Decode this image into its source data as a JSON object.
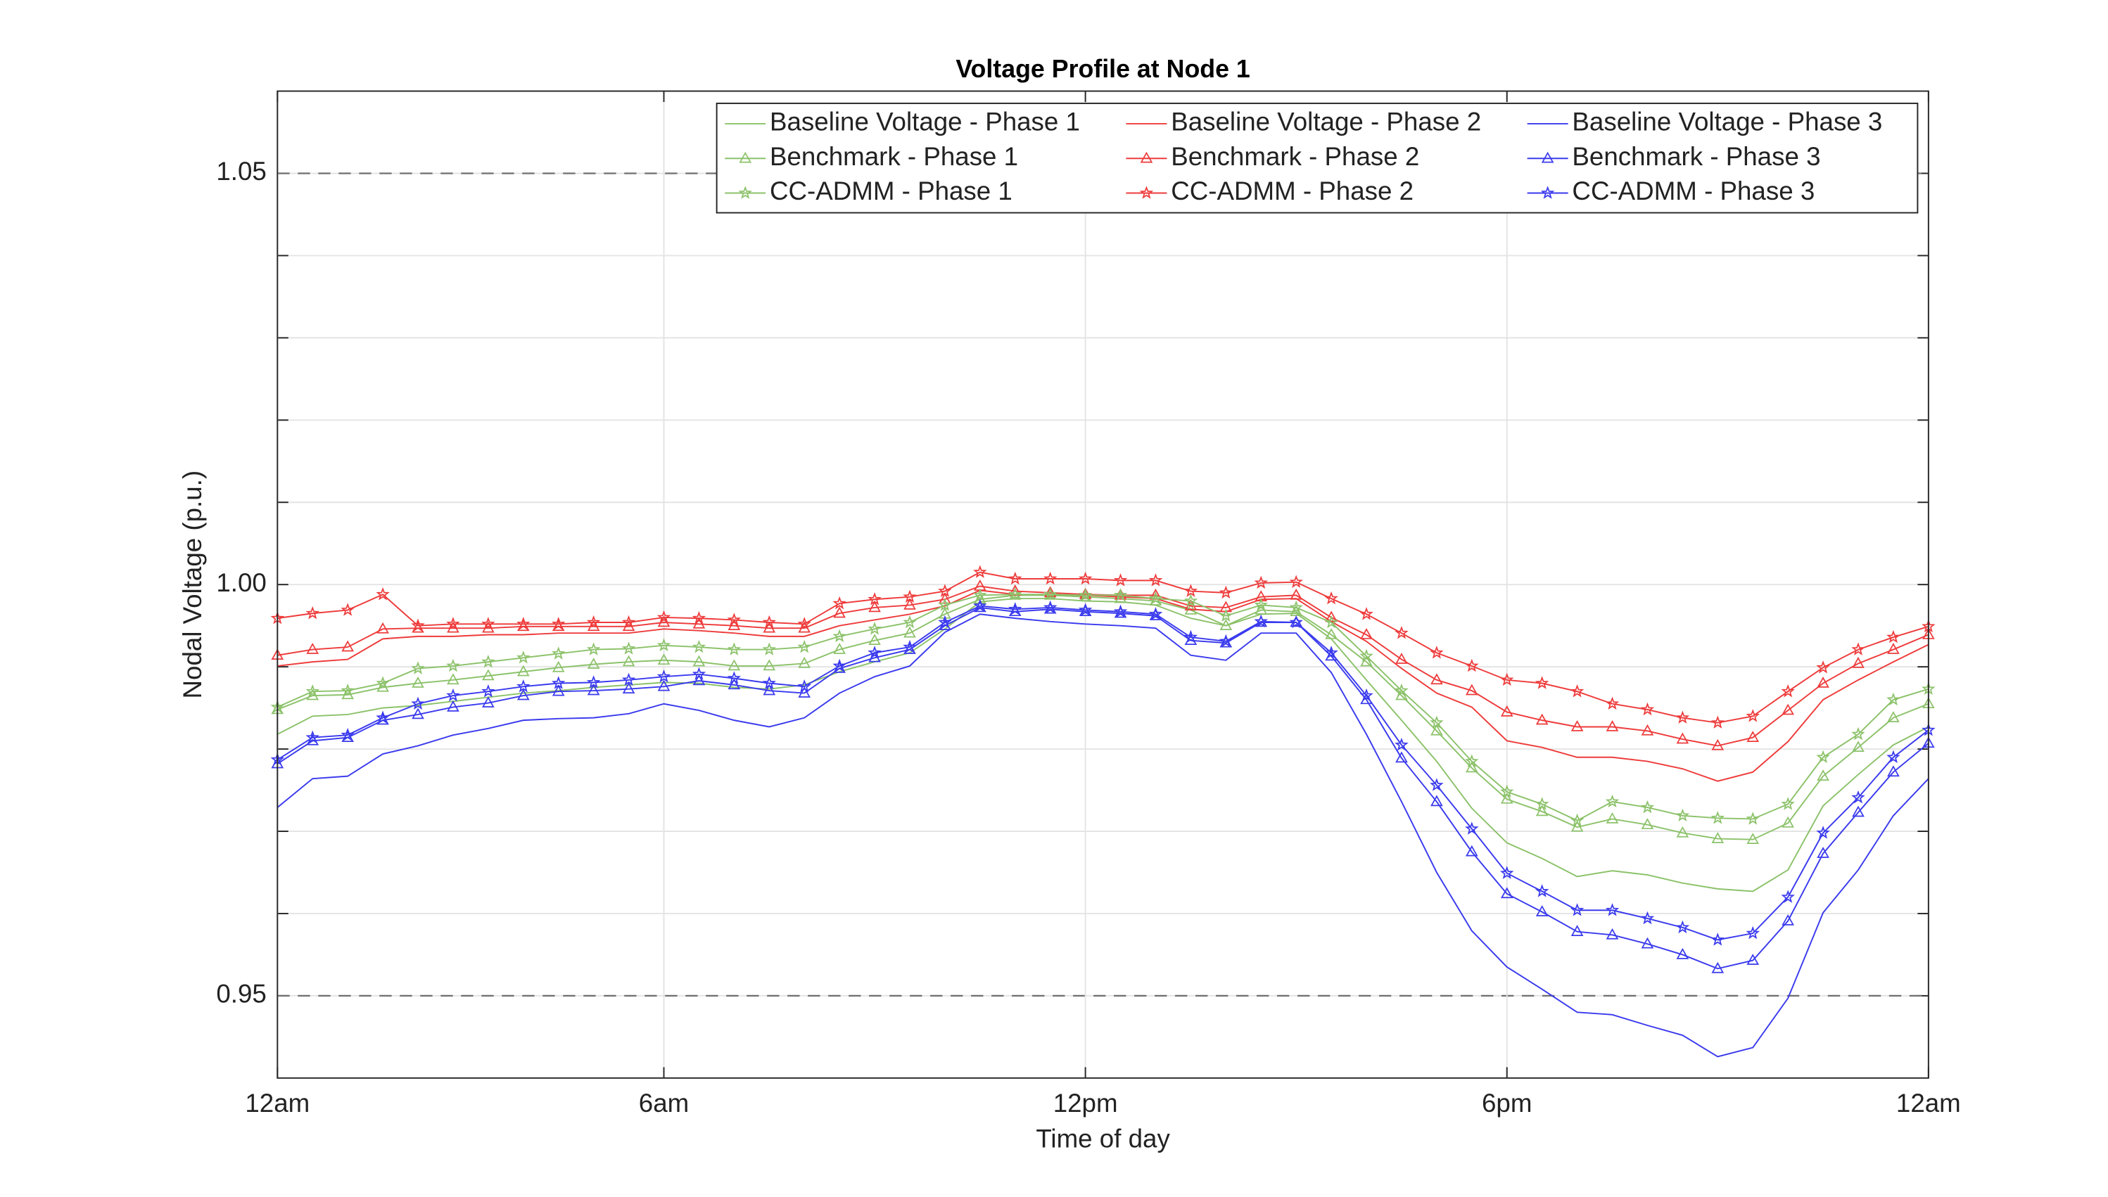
{
  "chart_data": {
    "type": "line",
    "title": "Voltage Profile at Node 1",
    "xlabel": "Time of day",
    "ylabel": "Nodal Voltage (p.u.)",
    "x": [
      1,
      2,
      3,
      4,
      5,
      6,
      7,
      8,
      9,
      10,
      11,
      12,
      13,
      14,
      15,
      16,
      17,
      18,
      19,
      20,
      21,
      22,
      23,
      24,
      25,
      26,
      27,
      28,
      29,
      30,
      31,
      32,
      33,
      34,
      35,
      36,
      37,
      38,
      39,
      40,
      41,
      42,
      43,
      44,
      45,
      46,
      47,
      48
    ],
    "xlim": [
      1,
      48
    ],
    "xticks": [
      {
        "value": 1,
        "label": "12am"
      },
      {
        "value": 12,
        "label": "6am"
      },
      {
        "value": 24,
        "label": "12pm"
      },
      {
        "value": 36,
        "label": "6pm"
      },
      {
        "value": 48,
        "label": "12am"
      }
    ],
    "ylim": [
      0.94,
      1.06
    ],
    "yticks": [
      0.95,
      {
        "value": 1,
        "label": "1.00"
      },
      1.05
    ],
    "yminorticks": [
      0.96,
      0.97,
      0.98,
      0.99,
      1.01,
      1.02,
      1.03,
      1.04
    ],
    "limit_lines": [
      0.95,
      1.05
    ],
    "grid": true,
    "legend": {
      "position": "top-right",
      "columns": 3
    },
    "series": [
      {
        "name": "Baseline Voltage - Phase 1",
        "color": "#8cc26a",
        "marker": "none",
        "values": [
          0.9818,
          0.984,
          0.9842,
          0.985,
          0.9853,
          0.9858,
          0.9863,
          0.9868,
          0.9871,
          0.9875,
          0.9878,
          0.9881,
          0.988,
          0.9875,
          0.9873,
          0.9878,
          0.9894,
          0.9906,
          0.9917,
          0.9946,
          0.9979,
          0.9983,
          0.9983,
          0.998,
          0.9979,
          0.9975,
          0.9959,
          0.995,
          0.9964,
          0.9965,
          0.9934,
          0.9884,
          0.9835,
          0.9785,
          0.9728,
          0.9686,
          0.9667,
          0.9645,
          0.9652,
          0.9647,
          0.9637,
          0.963,
          0.9627,
          0.9653,
          0.9731,
          0.9769,
          0.9805,
          0.9827
        ]
      },
      {
        "name": "Baseline Voltage - Phase 2",
        "color": "#ee3b3b",
        "marker": "none",
        "values": [
          0.9901,
          0.9906,
          0.9909,
          0.9934,
          0.9937,
          0.9937,
          0.9939,
          0.9939,
          0.9941,
          0.9941,
          0.9941,
          0.9946,
          0.9944,
          0.9941,
          0.9937,
          0.9937,
          0.995,
          0.9957,
          0.9964,
          0.9974,
          0.9993,
          0.9988,
          0.9987,
          0.9987,
          0.9985,
          0.9983,
          0.997,
          0.9967,
          0.9982,
          0.9983,
          0.9955,
          0.9931,
          0.9898,
          0.9868,
          0.9851,
          0.981,
          0.9802,
          0.979,
          0.979,
          0.9785,
          0.9776,
          0.9761,
          0.9772,
          0.9809,
          0.986,
          0.9884,
          0.9906,
          0.9927
        ]
      },
      {
        "name": "Baseline Voltage - Phase 3",
        "color": "#3a3aee",
        "marker": "none",
        "values": [
          0.9729,
          0.9764,
          0.9767,
          0.9794,
          0.9804,
          0.9817,
          0.9825,
          0.9835,
          0.9837,
          0.9838,
          0.9843,
          0.9855,
          0.9847,
          0.9835,
          0.9827,
          0.9838,
          0.9868,
          0.9888,
          0.9901,
          0.9942,
          0.9964,
          0.9959,
          0.9955,
          0.9952,
          0.995,
          0.9947,
          0.9914,
          0.9908,
          0.9941,
          0.9941,
          0.9893,
          0.9818,
          0.9736,
          0.965,
          0.9579,
          0.9535,
          0.9508,
          0.948,
          0.9477,
          0.9464,
          0.9452,
          0.9426,
          0.9437,
          0.9497,
          0.9601,
          0.9653,
          0.9719,
          0.9764
        ]
      },
      {
        "name": "Benchmark - Phase 1",
        "color": "#8cc26a",
        "marker": "triangle",
        "values": [
          0.9848,
          0.9865,
          0.9866,
          0.9875,
          0.988,
          0.9884,
          0.9889,
          0.9894,
          0.9899,
          0.9903,
          0.9906,
          0.9908,
          0.9906,
          0.9901,
          0.9901,
          0.9904,
          0.9921,
          0.9932,
          0.9941,
          0.9964,
          0.9982,
          0.9987,
          0.9987,
          0.9985,
          0.9983,
          0.998,
          0.9969,
          0.995,
          0.9969,
          0.9967,
          0.9939,
          0.9906,
          0.9865,
          0.9822,
          0.9777,
          0.9739,
          0.9724,
          0.9705,
          0.9715,
          0.9708,
          0.9698,
          0.9691,
          0.969,
          0.971,
          0.9767,
          0.9802,
          0.9838,
          0.9855
        ]
      },
      {
        "name": "Benchmark - Phase 2",
        "color": "#ee3b3b",
        "marker": "triangle",
        "values": [
          0.9914,
          0.9921,
          0.9924,
          0.9946,
          0.9947,
          0.9947,
          0.9947,
          0.9949,
          0.9949,
          0.9949,
          0.9949,
          0.9954,
          0.9952,
          0.995,
          0.9947,
          0.9947,
          0.9965,
          0.9972,
          0.9975,
          0.9982,
          0.9998,
          0.9992,
          0.999,
          0.9988,
          0.9987,
          0.9987,
          0.9974,
          0.9972,
          0.9985,
          0.9987,
          0.996,
          0.9939,
          0.9909,
          0.9884,
          0.9871,
          0.9845,
          0.9835,
          0.9827,
          0.9827,
          0.9822,
          0.9812,
          0.9804,
          0.9814,
          0.9847,
          0.988,
          0.9904,
          0.9921,
          0.9939
        ]
      },
      {
        "name": "Benchmark - Phase 3",
        "color": "#3a3aee",
        "marker": "triangle",
        "values": [
          0.9782,
          0.981,
          0.9814,
          0.9835,
          0.9842,
          0.9851,
          0.9856,
          0.9865,
          0.987,
          0.9871,
          0.9873,
          0.9876,
          0.9883,
          0.9878,
          0.9871,
          0.9868,
          0.9898,
          0.9911,
          0.9921,
          0.995,
          0.9972,
          0.9967,
          0.997,
          0.9967,
          0.9965,
          0.9962,
          0.9932,
          0.9929,
          0.9954,
          0.9954,
          0.9913,
          0.986,
          0.9789,
          0.9736,
          0.9675,
          0.9624,
          0.9602,
          0.9578,
          0.9574,
          0.9563,
          0.955,
          0.9533,
          0.9543,
          0.9591,
          0.9673,
          0.9723,
          0.9772,
          0.9807
        ]
      },
      {
        "name": "CC-ADMM - Phase 1",
        "color": "#8cc26a",
        "marker": "star",
        "values": [
          0.9851,
          0.987,
          0.9871,
          0.988,
          0.9898,
          0.9901,
          0.9906,
          0.9911,
          0.9916,
          0.9921,
          0.9922,
          0.9926,
          0.9924,
          0.9921,
          0.9921,
          0.9924,
          0.9937,
          0.9946,
          0.9954,
          0.9975,
          0.9987,
          0.9988,
          0.9988,
          0.9987,
          0.9987,
          0.9983,
          0.998,
          0.9962,
          0.9975,
          0.9972,
          0.9954,
          0.9913,
          0.9871,
          0.9832,
          0.9785,
          0.9748,
          0.9733,
          0.9713,
          0.9736,
          0.9729,
          0.9719,
          0.9716,
          0.9715,
          0.9733,
          0.979,
          0.9818,
          0.986,
          0.9873
        ]
      },
      {
        "name": "CC-ADMM - Phase 2",
        "color": "#ee3b3b",
        "marker": "star",
        "values": [
          0.9959,
          0.9965,
          0.9969,
          0.9988,
          0.995,
          0.9952,
          0.9952,
          0.9952,
          0.9952,
          0.9954,
          0.9954,
          0.996,
          0.9959,
          0.9957,
          0.9954,
          0.9952,
          0.9977,
          0.9982,
          0.9985,
          0.9992,
          1.0015,
          1.0007,
          1.0007,
          1.0007,
          1.0005,
          1.0005,
          0.9992,
          0.999,
          1.0002,
          1.0003,
          0.9983,
          0.9964,
          0.9941,
          0.9917,
          0.9901,
          0.9884,
          0.988,
          0.987,
          0.9855,
          0.9848,
          0.9838,
          0.9832,
          0.984,
          0.987,
          0.9899,
          0.9921,
          0.9936,
          0.9949
        ]
      },
      {
        "name": "CC-ADMM - Phase 3",
        "color": "#3a3aee",
        "marker": "star",
        "values": [
          0.9787,
          0.9814,
          0.9817,
          0.9838,
          0.9855,
          0.9865,
          0.987,
          0.9876,
          0.988,
          0.9881,
          0.9884,
          0.9888,
          0.9891,
          0.9886,
          0.988,
          0.9876,
          0.9901,
          0.9917,
          0.9924,
          0.9954,
          0.9974,
          0.997,
          0.9972,
          0.9969,
          0.9967,
          0.9964,
          0.9936,
          0.9931,
          0.9955,
          0.9954,
          0.9917,
          0.9865,
          0.9805,
          0.9756,
          0.9703,
          0.9649,
          0.9627,
          0.9604,
          0.9604,
          0.9594,
          0.9583,
          0.9568,
          0.9576,
          0.962,
          0.9698,
          0.9741,
          0.979,
          0.9823
        ]
      }
    ]
  }
}
